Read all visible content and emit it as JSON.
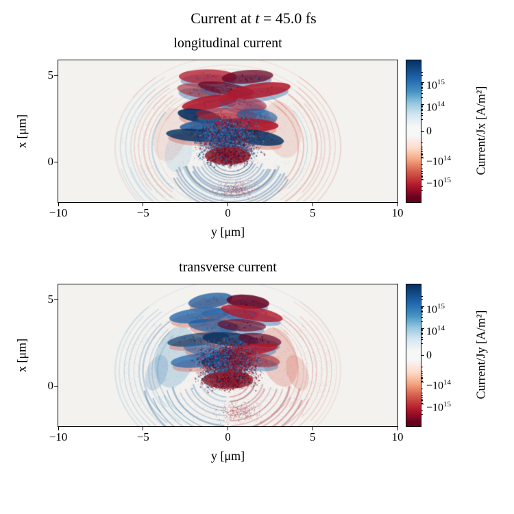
{
  "figure": {
    "suptitle_parts": [
      "Current at ",
      "t",
      " = 45.0 fs"
    ],
    "panels": [
      {
        "title": "longitudinal current",
        "xlabel": "y [μm]",
        "ylabel": "x [μm]",
        "xtick_labels": [
          "−10",
          "−5",
          "0",
          "5",
          "10"
        ],
        "ytick_labels": [
          "5",
          "0"
        ],
        "colorbar_label": "Current/Jx [A/m²]",
        "colorbar_tick_labels": [
          "10^15",
          "10^14",
          "0",
          "−10^14",
          "−10^15"
        ]
      },
      {
        "title": "transverse current",
        "xlabel": "y [μm]",
        "ylabel": "x [μm]",
        "xtick_labels": [
          "−10",
          "−5",
          "0",
          "5",
          "10"
        ],
        "ytick_labels": [
          "5",
          "0"
        ],
        "colorbar_label": "Current/Jy [A/m²]",
        "colorbar_tick_labels": [
          "10^15",
          "10^14",
          "0",
          "−10^14",
          "−10^15"
        ]
      }
    ],
    "colors": {
      "background": "#ffffff",
      "plot_background": "#f3f2ef",
      "colormap_name": "RdBu",
      "dark_blue": "#053061",
      "blue": "#2166ac",
      "mid_blue": "#4393c3",
      "pale_blue": "#92c5de",
      "light_blue": "#d1e5f0",
      "white": "#f7f7f7",
      "light_red": "#fddbc7",
      "pale_red": "#f4a582",
      "salmon": "#d6604d",
      "red": "#b2182b",
      "dark_red": "#67001f"
    }
  },
  "chart_data": [
    {
      "type": "heatmap",
      "title": "longitudinal current",
      "time_fs": 45.0,
      "xlabel": "y [μm]",
      "ylabel": "x [μm]",
      "xlim": [
        -10,
        10
      ],
      "ylim": [
        -2.3,
        5.9
      ],
      "xticks": [
        -10,
        -5,
        0,
        5,
        10
      ],
      "yticks": [
        0,
        5
      ],
      "value_label": "Current/Jx [A/m²]",
      "value_scale": "symlog",
      "value_ticks": [
        1000000000000000.0,
        100000000000000.0,
        0,
        -100000000000000.0,
        -1000000000000000.0
      ],
      "value_range": [
        -3000000000000000.0,
        3000000000000000.0
      ],
      "colormap": "RdBu (blue = positive Jx, red = negative Jx)",
      "grid": false,
      "colorbar_position": "right",
      "features": "Dome-shaped plasma region ~6 μm radius centered near y=0. Stack of overlapping crescent/petal-shaped filaments between x≈1.5 and x≈5.5 μm, mostly strongly negative (dark red) with positive (blue) fringes. Dense turbulent positive (blue) core for x≈0–2.5 μm with a strong negative (dark red) blob near (y≈0, x≈0.3). Faint negative outer shell arcs on both sides; positive (blue) fan extending downward below x≈0 with weak negative speckle at the very bottom center."
    },
    {
      "type": "heatmap",
      "title": "transverse current",
      "time_fs": 45.0,
      "xlabel": "y [μm]",
      "ylabel": "x [μm]",
      "xlim": [
        -10,
        10
      ],
      "ylim": [
        -2.3,
        5.9
      ],
      "xticks": [
        -10,
        -5,
        0,
        5,
        10
      ],
      "yticks": [
        0,
        5
      ],
      "value_label": "Current/Jy [A/m²]",
      "value_scale": "symlog",
      "value_ticks": [
        1000000000000000.0,
        100000000000000.0,
        0,
        -100000000000000.0,
        -1000000000000000.0
      ],
      "value_range": [
        -3000000000000000.0,
        3000000000000000.0
      ],
      "colormap": "RdBu (blue = positive Jy, red = negative Jy)",
      "grid": false,
      "colorbar_position": "right",
      "features": "Same dome; petal filaments alternate sign left/right in a checker pattern row by row. Outer shell arcs positive (blue) on the left side and negative (red) on the right side, antisymmetric about y=0. Downward fan blue on lower-left and red on lower-right; dense mixed-sign core with a dark red blob near (y≈0, x≈0.3)."
    }
  ]
}
